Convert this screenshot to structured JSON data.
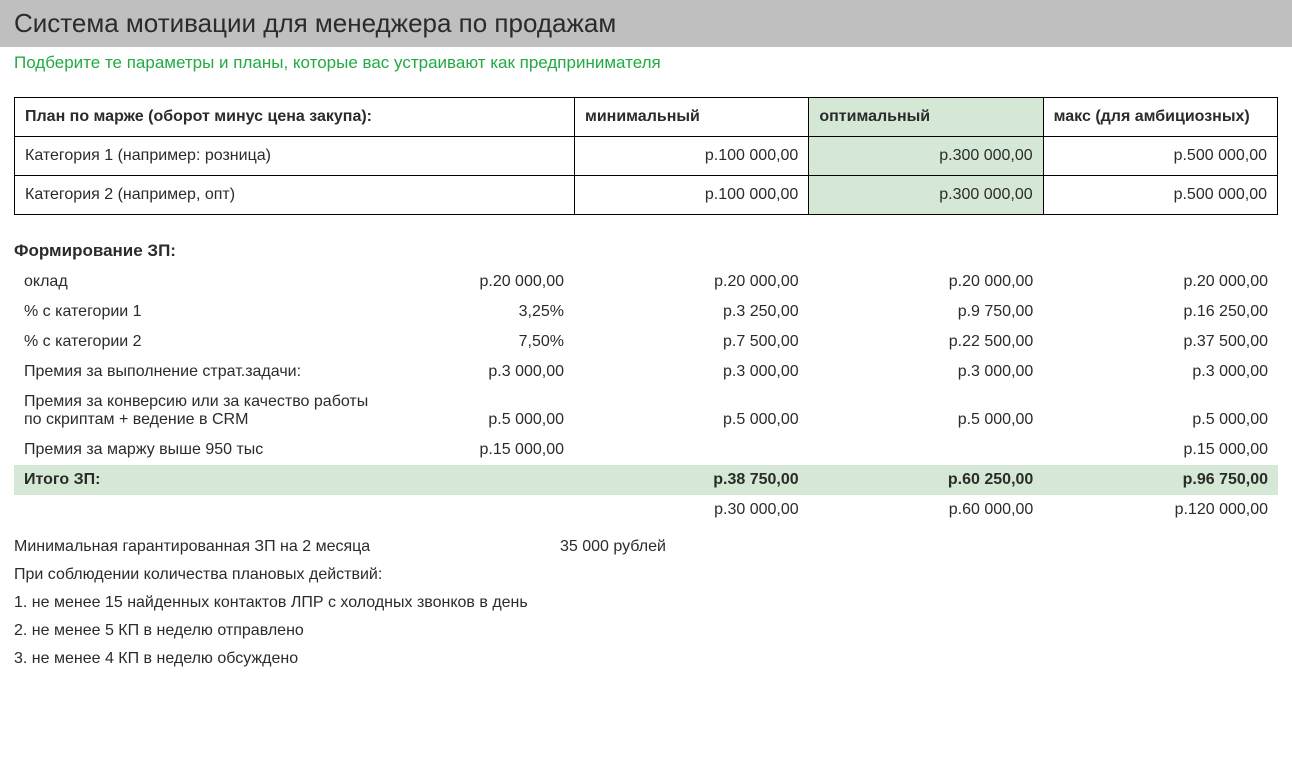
{
  "colors": {
    "title_bg": "#bfbfbf",
    "subtitle_text": "#22aa44",
    "highlight_bg": "#d5e8d5",
    "border": "#000000",
    "text": "#2b2b2b"
  },
  "title": "Система мотивации для менеджера по продажам",
  "subtitle": "Подберите те параметры и планы, которые вас устраивают как предпринимателя",
  "plan_table": {
    "header": {
      "label": "План по марже (оборот минус цена закупа):",
      "min": "минимальный",
      "opt": "оптимальный",
      "max": "макс (для амбициозных)"
    },
    "rows": [
      {
        "label": "Категория 1 (например: розница)",
        "min": "р.100 000,00",
        "opt": "р.300 000,00",
        "max": "р.500 000,00",
        "opt_highlight": true
      },
      {
        "label": "Категория 2 (например, опт)",
        "min": "р.100 000,00",
        "opt": "р.300 000,00",
        "max": "р.500 000,00",
        "opt_highlight": true
      }
    ]
  },
  "salary_section_title": "Формирование ЗП:",
  "salary_rows": [
    {
      "label": "оклад",
      "base": "р.20 000,00",
      "min": "р.20 000,00",
      "opt": "р.20 000,00",
      "max": "р.20 000,00"
    },
    {
      "label": "% с категории 1",
      "base": "3,25%",
      "min": "р.3 250,00",
      "opt": "р.9 750,00",
      "max": "р.16 250,00"
    },
    {
      "label": "% с категории 2",
      "base": "7,50%",
      "min": "р.7 500,00",
      "opt": "р.22 500,00",
      "max": "р.37 500,00"
    },
    {
      "label": "Премия за выполнение страт.задачи:",
      "base": "р.3 000,00",
      "min": "р.3 000,00",
      "opt": "р.3 000,00",
      "max": "р.3 000,00"
    },
    {
      "label": "Премия за конверсию или за качество работы по скриптам + ведение в CRM",
      "base": "р.5 000,00",
      "min": "р.5 000,00",
      "opt": "р.5 000,00",
      "max": "р.5 000,00"
    },
    {
      "label": "Премия за маржу выше 950 тыс",
      "base": "р.15 000,00",
      "min": "",
      "opt": "",
      "max": "р.15 000,00"
    }
  ],
  "salary_total": {
    "label": "Итого ЗП:",
    "base": "",
    "min": "р.38 750,00",
    "opt": "р.60 250,00",
    "max": "р.96 750,00"
  },
  "salary_ref": {
    "label": "",
    "base": "",
    "min": "р.30 000,00",
    "opt": "р.60 000,00",
    "max": "р.120 000,00"
  },
  "notes": {
    "guarantee_label": "Минимальная гарантированная ЗП на 2 месяца",
    "guarantee_value": "35 000 рублей",
    "cond_header": "При соблюдении количества плановых действий:",
    "conditions": [
      "1. не менее 15 найденных контактов ЛПР с холодных звонков в день",
      "2. не менее 5 КП в неделю отправлено",
      "3. не менее 4 КП в неделю обсуждено"
    ]
  }
}
